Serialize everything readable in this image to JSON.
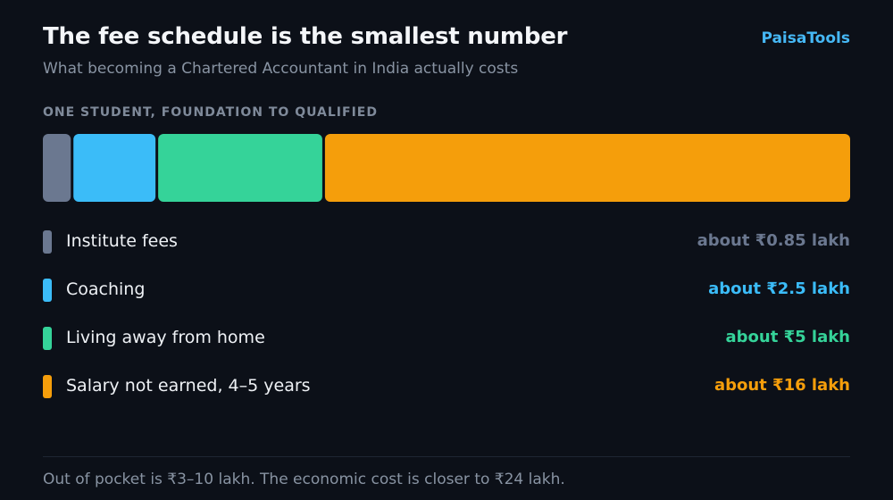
{
  "header": {
    "title": "The fee schedule is the smallest number",
    "subtitle": "What becoming a Chartered Accountant in India actually costs",
    "brand": "PaisaTools"
  },
  "section_label": "ONE STUDENT, FOUNDATION TO QUALIFIED",
  "chart_data": {
    "type": "bar",
    "orientation": "horizontal-stacked",
    "unit": "lakh",
    "categories": [
      "Institute fees",
      "Coaching",
      "Living away from home",
      "Salary not earned, 4–5 years"
    ],
    "values": [
      0.85,
      2.5,
      5,
      16
    ],
    "value_labels": [
      "about ₹0.85 lakh",
      "about ₹2.5 lakh",
      "about ₹5 lakh",
      "about ₹16 lakh"
    ],
    "colors": [
      "#6b7890",
      "#3bbcf8",
      "#35d399",
      "#f59e0b"
    ],
    "grid": false
  },
  "footer": "Out of pocket is ₹3–10 lakh. The economic cost is closer to ₹24 lakh."
}
